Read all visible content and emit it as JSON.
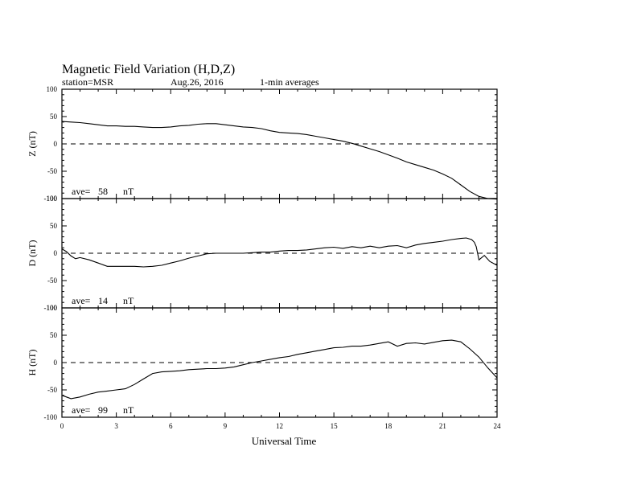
{
  "header": {
    "title": "Magnetic Field Variation (H,D,Z)",
    "station": "station=MSR",
    "date": "Aug.26, 2016",
    "averaging": "1-min averages"
  },
  "chart_data": {
    "type": "line",
    "xlabel": "Universal Time",
    "xlim": [
      0,
      24
    ],
    "xticks": [
      0,
      3,
      6,
      9,
      12,
      15,
      18,
      21,
      24
    ],
    "panels": [
      {
        "id": "z",
        "ylabel": "Z (nT)",
        "ylim": [
          -100,
          100
        ],
        "yticks": [
          -100,
          -50,
          0,
          50,
          100
        ],
        "ave_label": "ave=",
        "ave_value": "58",
        "ave_unit": "nT",
        "x": [
          0,
          0.5,
          1,
          1.5,
          2,
          2.5,
          3,
          3.5,
          4,
          4.5,
          5,
          5.5,
          6,
          6.5,
          7,
          7.5,
          8,
          8.5,
          9,
          9.5,
          10,
          10.5,
          11,
          11.5,
          12,
          12.5,
          13,
          13.5,
          14,
          14.5,
          15,
          15.5,
          16,
          16.5,
          17,
          17.5,
          18,
          18.5,
          19,
          19.5,
          20,
          20.5,
          21,
          21.5,
          22,
          22.5,
          23,
          23.5,
          24
        ],
        "y": [
          41,
          40,
          39,
          37,
          35,
          33,
          33,
          32,
          32,
          31,
          30,
          30,
          31,
          33,
          34,
          36,
          37,
          37,
          35,
          33,
          31,
          30,
          28,
          24,
          21,
          20,
          19,
          17,
          14,
          11,
          8,
          5,
          1,
          -4,
          -9,
          -14,
          -20,
          -26,
          -33,
          -38,
          -43,
          -48,
          -55,
          -63,
          -75,
          -87,
          -96,
          -100,
          -101
        ]
      },
      {
        "id": "d",
        "ylabel": "D (nT)",
        "ylim": [
          -100,
          100
        ],
        "yticks": [
          -100,
          -50,
          0,
          50,
          100
        ],
        "ave_label": "ave=",
        "ave_value": "14",
        "ave_unit": "nT",
        "x": [
          0,
          0.25,
          0.5,
          0.75,
          1,
          1.5,
          2,
          2.5,
          3,
          3.5,
          4,
          4.5,
          5,
          5.5,
          6,
          6.5,
          7,
          7.5,
          8,
          8.5,
          9,
          9.5,
          10,
          10.5,
          11,
          11.5,
          12,
          12.5,
          13,
          13.5,
          14,
          14.5,
          15,
          15.5,
          16,
          16.5,
          17,
          17.5,
          18,
          18.5,
          19,
          19.5,
          20,
          20.5,
          21,
          21.5,
          22,
          22.3,
          22.6,
          22.75,
          22.85,
          23,
          23.3,
          23.6,
          24
        ],
        "y": [
          8,
          3,
          -5,
          -10,
          -8,
          -12,
          -18,
          -24,
          -24,
          -24,
          -24,
          -25,
          -24,
          -22,
          -18,
          -14,
          -9,
          -5,
          -1,
          0,
          0,
          0,
          0,
          1,
          2,
          2,
          4,
          5,
          5,
          6,
          8,
          10,
          11,
          9,
          12,
          10,
          13,
          10,
          13,
          14,
          10,
          15,
          18,
          20,
          22,
          25,
          27,
          28,
          25,
          20,
          12,
          -12,
          -4,
          -15,
          -22
        ]
      },
      {
        "id": "h",
        "ylabel": "H (nT)",
        "ylim": [
          -100,
          100
        ],
        "yticks": [
          -100,
          -50,
          0,
          50,
          100
        ],
        "ave_label": "ave=",
        "ave_value": "99",
        "ave_unit": "nT",
        "x": [
          0,
          0.25,
          0.5,
          1,
          1.5,
          2,
          2.5,
          3,
          3.5,
          4,
          4.5,
          5,
          5.5,
          6,
          6.5,
          7,
          7.5,
          8,
          8.5,
          9,
          9.5,
          10,
          10.5,
          11,
          11.5,
          12,
          12.5,
          13,
          13.5,
          14,
          14.5,
          15,
          15.5,
          16,
          16.5,
          17,
          17.5,
          18,
          18.5,
          19,
          19.5,
          20,
          20.5,
          21,
          21.5,
          22,
          22.5,
          23,
          23.5,
          24
        ],
        "y": [
          -60,
          -63,
          -66,
          -63,
          -58,
          -54,
          -52,
          -50,
          -48,
          -40,
          -30,
          -20,
          -17,
          -16,
          -15,
          -13,
          -12,
          -11,
          -11,
          -10,
          -8,
          -4,
          0,
          3,
          6,
          9,
          11,
          15,
          18,
          21,
          24,
          27,
          28,
          30,
          30,
          32,
          35,
          38,
          30,
          35,
          36,
          34,
          37,
          40,
          41,
          38,
          25,
          10,
          -10,
          -28
        ]
      }
    ]
  }
}
